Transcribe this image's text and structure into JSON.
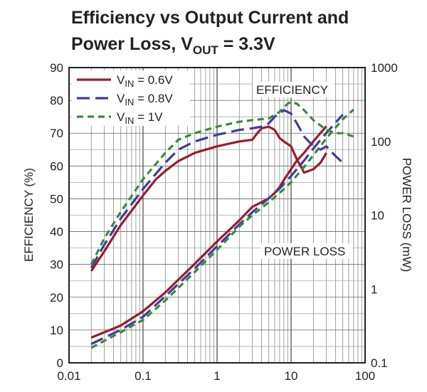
{
  "chart_data": {
    "type": "line",
    "title_line1": "Efficiency vs Output Current and",
    "title_line2_main": "Power Loss, V",
    "title_line2_sub": "OUT",
    "title_line2_end": " = 3.3V",
    "xlabel": "",
    "ylabel_left": "EFFICIENCY (%)",
    "ylabel_right": "POWER LOSS (mW)",
    "x_scale": "log",
    "xlim": [
      0.01,
      100
    ],
    "x_ticks": [
      "0.01",
      "0.1",
      "1",
      "10",
      "100"
    ],
    "ylim_left": [
      0,
      90
    ],
    "y_ticks_left": [
      "0",
      "10",
      "20",
      "30",
      "40",
      "50",
      "60",
      "70",
      "80",
      "90"
    ],
    "y_scale_right": "log",
    "ylim_right": [
      0.1,
      1000
    ],
    "y_ticks_right": [
      "0.1",
      "1",
      "10",
      "100",
      "1000"
    ],
    "grid": true,
    "legend_position": "top-left",
    "annotations": [
      "EFFICIENCY",
      "POWER LOSS"
    ],
    "series": [
      {
        "name_main": "V",
        "name_sub": "IN",
        "name_end": " = 0.6V",
        "color": "#9b1b2a",
        "dash": "solid",
        "efficiency": {
          "x": [
            0.02,
            0.03,
            0.05,
            0.1,
            0.15,
            0.2,
            0.3,
            0.5,
            1,
            2,
            3,
            3.5,
            4,
            5,
            6,
            7,
            8,
            10,
            12,
            15,
            20,
            25,
            30
          ],
          "y": [
            28,
            34,
            42,
            51,
            56,
            58.5,
            61.5,
            64,
            66,
            67.5,
            68,
            70,
            71.5,
            72,
            71,
            68.5,
            67.5,
            66,
            62,
            58,
            59,
            61,
            64
          ]
        },
        "power_loss": {
          "x": [
            0.02,
            0.05,
            0.1,
            0.2,
            0.5,
            1,
            2,
            3,
            4,
            5,
            6,
            7,
            8,
            10,
            12,
            15,
            20,
            25,
            30
          ],
          "y": [
            0.22,
            0.32,
            0.5,
            0.9,
            2.2,
            4.4,
            8.5,
            13,
            15,
            17,
            20,
            24,
            30,
            42,
            55,
            70,
            100,
            130,
            160
          ]
        }
      },
      {
        "name_main": "V",
        "name_sub": "IN",
        "name_end": " = 0.8V",
        "color": "#3b3f9e",
        "dash": "long-dash",
        "efficiency": {
          "x": [
            0.02,
            0.03,
            0.05,
            0.1,
            0.2,
            0.3,
            0.5,
            1,
            2,
            3,
            4,
            5,
            6,
            8,
            10,
            12,
            15,
            20,
            25,
            30,
            40,
            50
          ],
          "y": [
            29,
            36,
            44,
            53,
            61,
            65,
            67.5,
            69.5,
            71,
            71.5,
            72,
            73,
            75,
            77,
            76,
            73,
            69,
            66,
            65,
            66,
            63,
            61
          ]
        },
        "power_loss": {
          "x": [
            0.02,
            0.05,
            0.1,
            0.2,
            0.5,
            1,
            2,
            3,
            5,
            7,
            10,
            15,
            20,
            30,
            40,
            50
          ],
          "y": [
            0.18,
            0.28,
            0.42,
            0.8,
            1.9,
            3.8,
            7.5,
            11,
            17,
            23,
            34,
            55,
            80,
            130,
            180,
            230
          ]
        }
      },
      {
        "name_main": "V",
        "name_sub": "IN",
        "name_end": " = 1V",
        "color": "#3a8a3a",
        "dash": "dash",
        "efficiency": {
          "x": [
            0.02,
            0.03,
            0.05,
            0.1,
            0.2,
            0.3,
            0.5,
            1,
            2,
            3,
            5,
            7,
            9,
            10,
            12,
            15,
            20,
            30,
            40,
            50,
            70
          ],
          "y": [
            30,
            38,
            46,
            56,
            64,
            68,
            70,
            72,
            73.5,
            74,
            74.5,
            76.5,
            79,
            79.5,
            79,
            77,
            74,
            71,
            70,
            70,
            69
          ]
        },
        "power_loss": {
          "x": [
            0.02,
            0.05,
            0.1,
            0.2,
            0.5,
            1,
            2,
            3,
            5,
            7,
            10,
            15,
            20,
            30,
            50,
            70
          ],
          "y": [
            0.16,
            0.26,
            0.38,
            0.7,
            1.7,
            3.4,
            7,
            10,
            15,
            20,
            28,
            45,
            65,
            110,
            200,
            270
          ]
        }
      }
    ]
  }
}
